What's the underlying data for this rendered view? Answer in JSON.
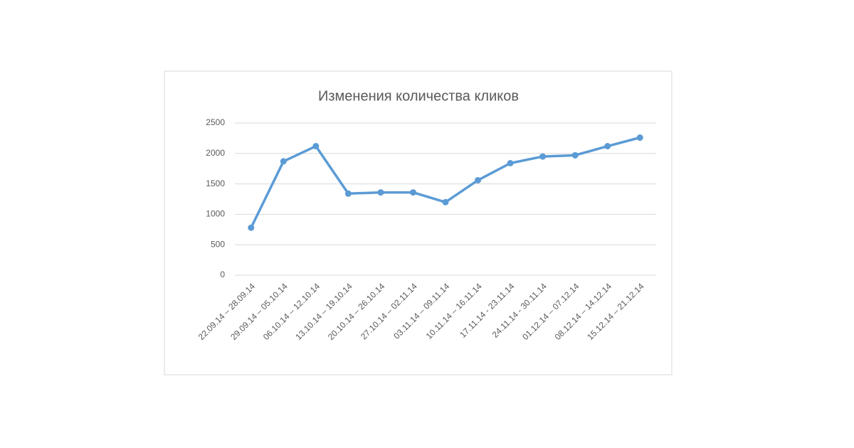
{
  "chart_data": {
    "type": "line",
    "title": "Изменения количества кликов",
    "categories": [
      "22.09.14 – 28.09.14",
      "29.09.14 – 05.10.14",
      "06.10.14 – 12.10.14",
      "13.10.14 – 19.10.14",
      "20.10.14 – 26.10.14",
      "27.10.14 – 02.11.14",
      "03.11.14 – 09.11.14",
      "10.11.14 – 16.11.14",
      "17.11.14 - 23.11.14",
      "24.11.14 - 30.11.14",
      "01.12.14 – 07.12.14",
      "08.12.14 – 14.12.14",
      "15.12.14 – 21.12.14"
    ],
    "values": [
      780,
      1870,
      2120,
      1340,
      1360,
      1360,
      1200,
      1560,
      1840,
      1950,
      1970,
      2120,
      2260
    ],
    "color": "#5b9bd5",
    "ylim": [
      0,
      2500
    ],
    "yticks": [
      0,
      500,
      1000,
      1500,
      2000,
      2500
    ],
    "grid": true
  }
}
